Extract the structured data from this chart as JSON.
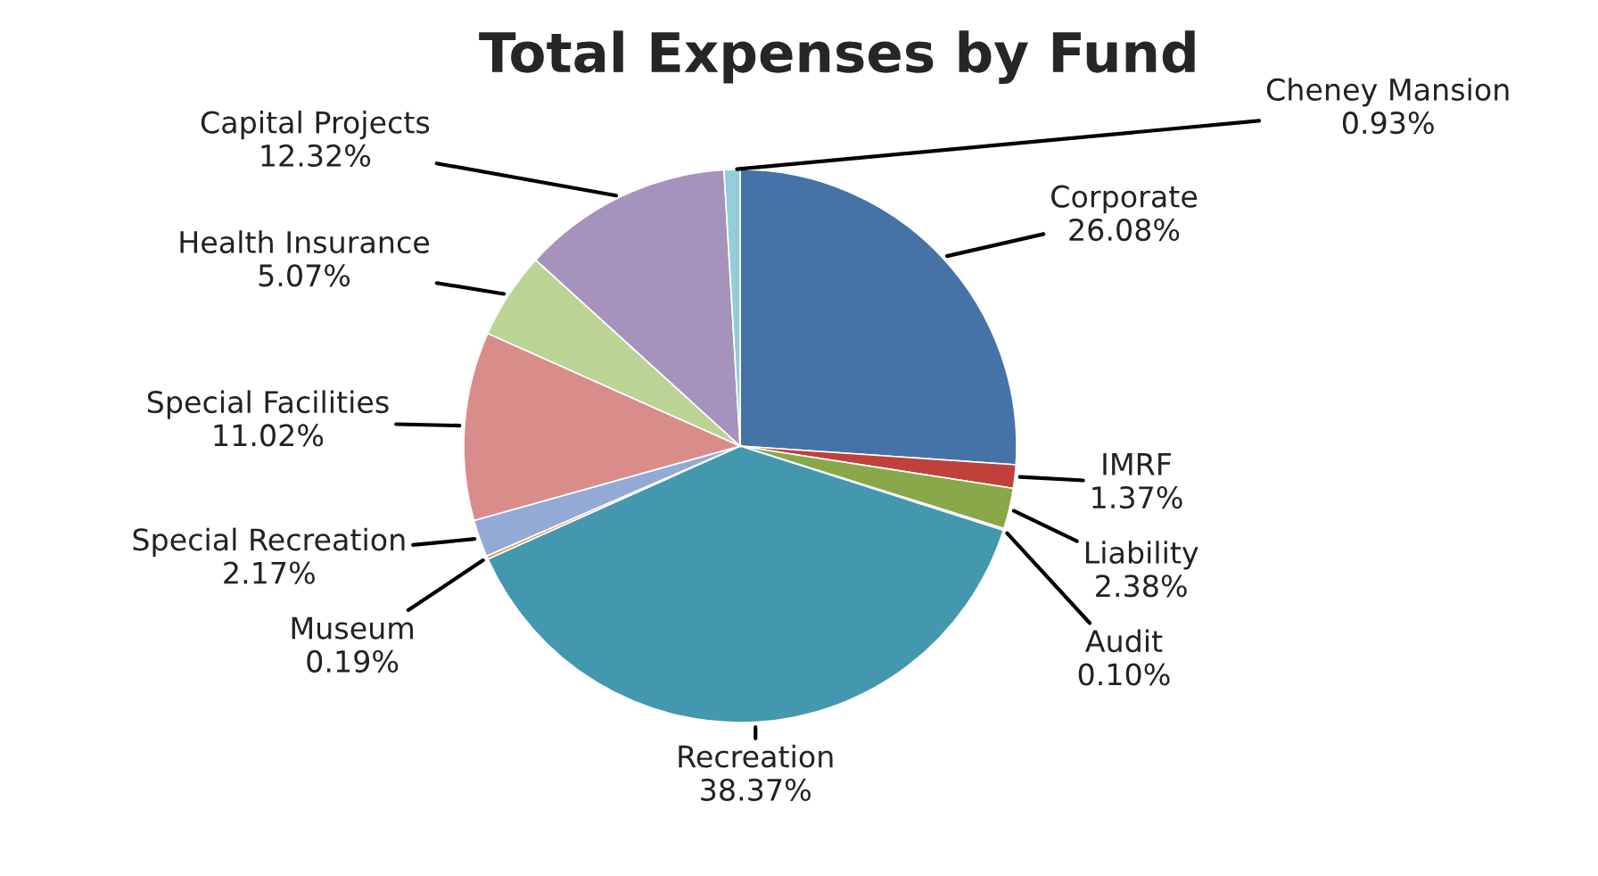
{
  "chart_data": {
    "type": "pie",
    "title": "Total Expenses by Fund",
    "categories": [
      "Corporate",
      "IMRF",
      "Liability",
      "Audit",
      "Recreation",
      "Museum",
      "Special Recreation",
      "Special Facilities",
      "Health Insurance",
      "Capital Projects",
      "Cheney Mansion"
    ],
    "values": [
      26.08,
      1.37,
      2.38,
      0.1,
      38.37,
      0.19,
      2.17,
      11.02,
      5.07,
      12.32,
      0.93
    ],
    "value_labels": [
      "26.08%",
      "1.37%",
      "2.38%",
      "0.10%",
      "38.37%",
      "0.19%",
      "2.17%",
      "11.02%",
      "5.07%",
      "12.32%",
      "0.93%"
    ],
    "colors": [
      "#4572a7",
      "#c0403c",
      "#88a84a",
      "#7f60a0",
      "#4398b0",
      "#e09a50",
      "#93a9d6",
      "#d98d8b",
      "#bcd396",
      "#a593bd",
      "#93cddd"
    ],
    "legend": false
  }
}
